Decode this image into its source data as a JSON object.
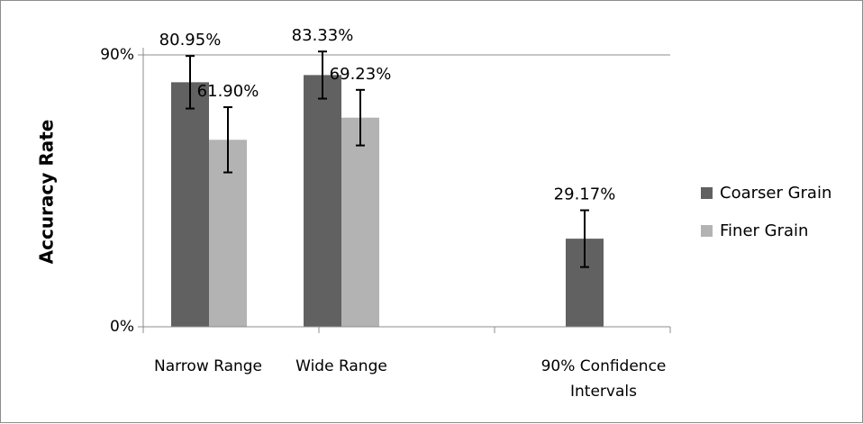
{
  "chart_data": {
    "type": "bar",
    "title": "",
    "xlabel": "",
    "ylabel": "Accuracy Rate",
    "ylim": [
      0,
      90
    ],
    "yticks": [
      {
        "value": 0,
        "label": "0%"
      },
      {
        "value": 90,
        "label": "90%"
      }
    ],
    "categories": [
      [
        "Narrow Range"
      ],
      [
        "Wide Range"
      ],
      [
        "90% Confidence",
        "Intervals"
      ]
    ],
    "series": [
      {
        "name": "Coarser Grain",
        "color": "#616161",
        "values": [
          80.95,
          83.33,
          29.17
        ],
        "labels": [
          "80.95%",
          "83.33%",
          "29.17%"
        ],
        "error": [
          8.7,
          7.8,
          9.4
        ]
      },
      {
        "name": "Finer Grain",
        "color": "#b3b3b3",
        "values": [
          61.9,
          69.23,
          null
        ],
        "labels": [
          "61.90%",
          "69.23%",
          ""
        ],
        "error": [
          10.8,
          9.2,
          null
        ]
      }
    ],
    "grid": "major-y-top",
    "legend_position": "right",
    "error_bars": true
  }
}
